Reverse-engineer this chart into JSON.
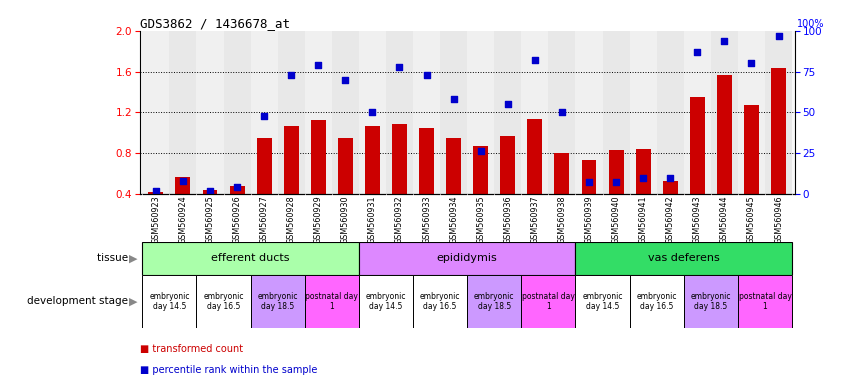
{
  "title": "GDS3862 / 1436678_at",
  "samples": [
    "GSM560923",
    "GSM560924",
    "GSM560925",
    "GSM560926",
    "GSM560927",
    "GSM560928",
    "GSM560929",
    "GSM560930",
    "GSM560931",
    "GSM560932",
    "GSM560933",
    "GSM560934",
    "GSM560935",
    "GSM560936",
    "GSM560937",
    "GSM560938",
    "GSM560939",
    "GSM560940",
    "GSM560941",
    "GSM560942",
    "GSM560943",
    "GSM560944",
    "GSM560945",
    "GSM560946"
  ],
  "bar_values": [
    0.42,
    0.57,
    0.44,
    0.48,
    0.95,
    1.07,
    1.12,
    0.95,
    1.07,
    1.09,
    1.05,
    0.95,
    0.87,
    0.97,
    1.13,
    0.8,
    0.73,
    0.83,
    0.84,
    0.53,
    1.35,
    1.57,
    1.27,
    1.63
  ],
  "dot_values_pct": [
    2,
    8,
    2,
    4,
    48,
    73,
    79,
    70,
    50,
    78,
    73,
    58,
    26,
    55,
    82,
    50,
    7,
    7,
    10,
    10,
    87,
    94,
    80,
    97
  ],
  "bar_color": "#cc0000",
  "dot_color": "#0000cc",
  "ylim_left": [
    0.4,
    2.0
  ],
  "ylim_right": [
    0,
    100
  ],
  "yticks_left": [
    0.4,
    0.8,
    1.2,
    1.6,
    2.0
  ],
  "yticks_right": [
    0,
    25,
    50,
    75,
    100
  ],
  "tissues": [
    {
      "label": "efferent ducts",
      "start": 0,
      "end": 8,
      "color": "#aaffaa"
    },
    {
      "label": "epididymis",
      "start": 8,
      "end": 16,
      "color": "#dd88ff"
    },
    {
      "label": "vas deferens",
      "start": 16,
      "end": 24,
      "color": "#33dd66"
    }
  ],
  "dev_stages": [
    {
      "label": "embryonic\nday 14.5",
      "start": 0,
      "end": 2,
      "color": "#ffffff"
    },
    {
      "label": "embryonic\nday 16.5",
      "start": 2,
      "end": 4,
      "color": "#ffffff"
    },
    {
      "label": "embryonic\nday 18.5",
      "start": 4,
      "end": 6,
      "color": "#cc99ff"
    },
    {
      "label": "postnatal day\n1",
      "start": 6,
      "end": 8,
      "color": "#ff66ff"
    },
    {
      "label": "embryonic\nday 14.5",
      "start": 8,
      "end": 10,
      "color": "#ffffff"
    },
    {
      "label": "embryonic\nday 16.5",
      "start": 10,
      "end": 12,
      "color": "#ffffff"
    },
    {
      "label": "embryonic\nday 18.5",
      "start": 12,
      "end": 14,
      "color": "#cc99ff"
    },
    {
      "label": "postnatal day\n1",
      "start": 14,
      "end": 16,
      "color": "#ff66ff"
    },
    {
      "label": "embryonic\nday 14.5",
      "start": 16,
      "end": 18,
      "color": "#ffffff"
    },
    {
      "label": "embryonic\nday 16.5",
      "start": 18,
      "end": 20,
      "color": "#ffffff"
    },
    {
      "label": "embryonic\nday 18.5",
      "start": 20,
      "end": 22,
      "color": "#cc99ff"
    },
    {
      "label": "postnatal day\n1",
      "start": 22,
      "end": 24,
      "color": "#ff66ff"
    }
  ],
  "legend_bar_label": "transformed count",
  "legend_dot_label": "percentile rank within the sample",
  "tissue_label": "tissue",
  "dev_stage_label": "development stage",
  "sample_label_bg": "#cccccc",
  "plot_bg": "#f8f8f8"
}
